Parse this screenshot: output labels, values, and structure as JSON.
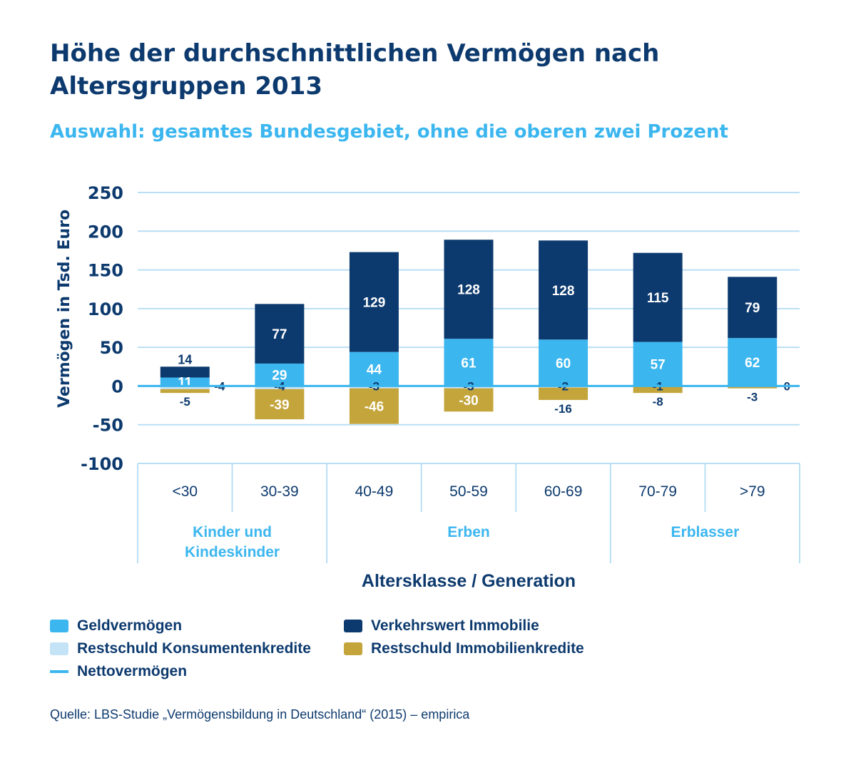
{
  "chart_data": {
    "type": "bar",
    "stacked": true,
    "title": "Höhe der durchschnittlichen Vermögen nach Altersgruppen 2013",
    "subtitle": "Auswahl: gesamtes Bundesgebiet, ohne die oberen zwei Prozent",
    "ylabel": "Vermögen in Tsd. Euro",
    "xlabel": "Altersklasse / Generation",
    "ylim": [
      -100,
      250
    ],
    "yticks": [
      250,
      200,
      150,
      100,
      50,
      0,
      -50,
      -100
    ],
    "categories": [
      "<30",
      "30-39",
      "40-49",
      "50-59",
      "60-69",
      "70-79",
      ">79"
    ],
    "groups": [
      {
        "label": "Kinder und Kindeskinder",
        "span": 2
      },
      {
        "label": "Erben",
        "span": 3
      },
      {
        "label": "Erblasser",
        "span": 2
      }
    ],
    "series": [
      {
        "name": "Geldvermögen",
        "color": "#3bb6ef",
        "values": [
          11,
          29,
          44,
          61,
          60,
          57,
          62
        ],
        "labels": [
          "11",
          "29",
          "44",
          "61",
          "60",
          "57",
          "62"
        ]
      },
      {
        "name": "Verkehrswert Immobilie",
        "color": "#0d3a6e",
        "values": [
          14,
          77,
          129,
          128,
          128,
          115,
          79
        ],
        "labels": [
          "14",
          "77",
          "129",
          "128",
          "128",
          "115",
          "79"
        ]
      },
      {
        "name": "Restschuld Konsumentenkredite",
        "color": "#c5e3f6",
        "values": [
          -4,
          -4,
          -3,
          -3,
          -2,
          -1,
          0
        ],
        "labels": [
          "-4",
          "-4",
          "-3",
          "-3",
          "-2",
          "-1",
          "0"
        ]
      },
      {
        "name": "Restschuld Immobilienkredite",
        "color": "#c4a53c",
        "values": [
          -5,
          -39,
          -46,
          -30,
          -16,
          -8,
          -3
        ],
        "labels": [
          "-5",
          "-39",
          "-46",
          "-30",
          "-16",
          "-8",
          "-3"
        ]
      }
    ],
    "net_line": {
      "name": "Nettovermögen",
      "color": "#3bb6ef"
    }
  },
  "legend": [
    {
      "label": "Geldvermögen",
      "color": "#3bb6ef",
      "kind": "swatch"
    },
    {
      "label": "Verkehrswert Immobilie",
      "color": "#0d3a6e",
      "kind": "swatch"
    },
    {
      "label": "Restschuld Konsumentenkredite",
      "color": "#c5e3f6",
      "kind": "swatch"
    },
    {
      "label": "Restschuld Immobilienkredite",
      "color": "#c4a53c",
      "kind": "swatch"
    },
    {
      "label": "Nettovermögen",
      "color": "#3bb6ef",
      "kind": "line"
    }
  ],
  "source": "Quelle: LBS-Studie „Vermögensbildung in Deutschland“ (2015) – empirica"
}
